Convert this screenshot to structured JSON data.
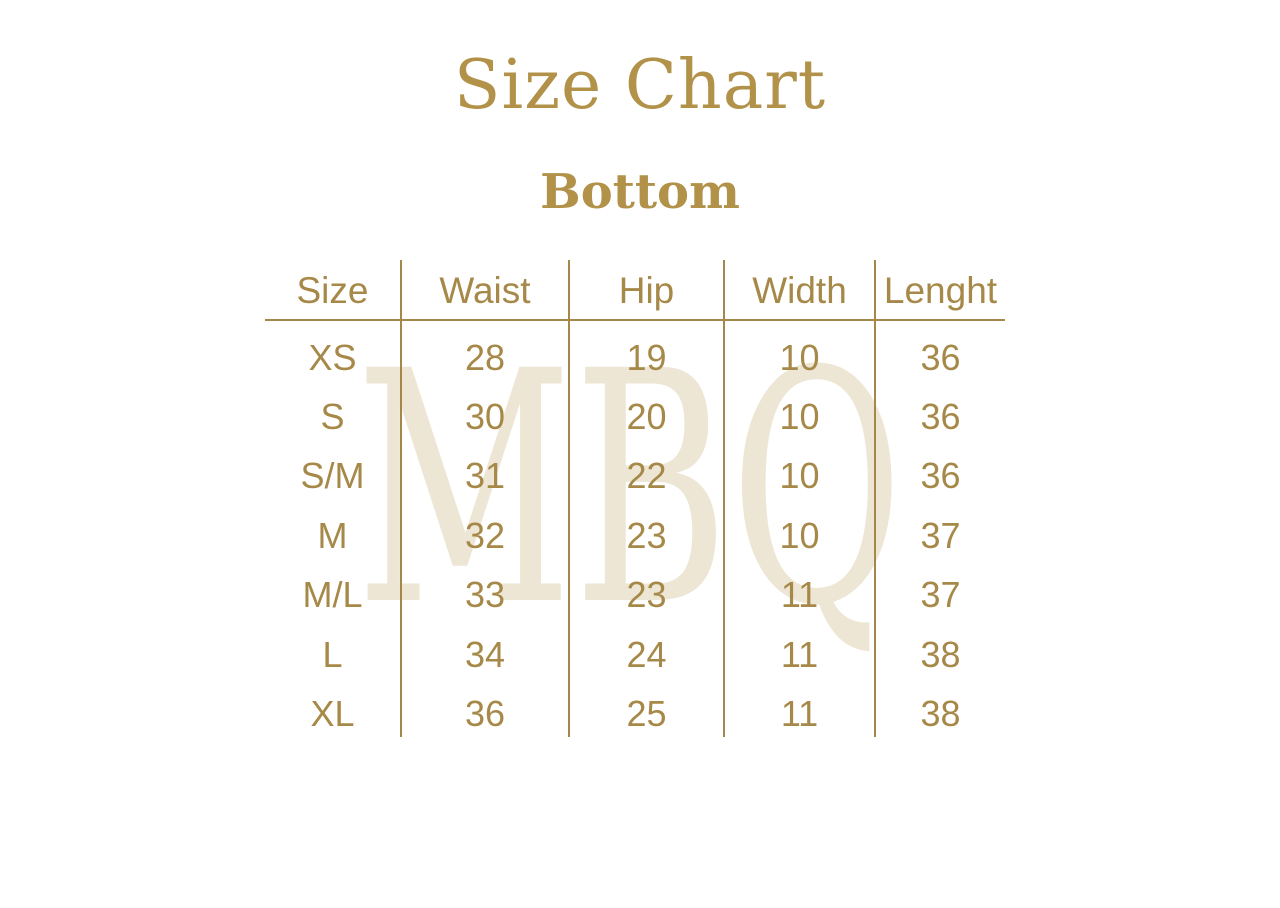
{
  "page": {
    "title": "Size Chart",
    "subtitle": "Bottom",
    "watermark": "MBQ"
  },
  "colors": {
    "title_gold": "#B29149",
    "table_gold": "#A68948",
    "line_gold": "#A5874A",
    "watermark_beige": "#EDE6D4",
    "background": "#FFFFFF"
  },
  "chart_data": {
    "type": "table",
    "title": "Size Chart",
    "subtitle": "Bottom",
    "columns": [
      "Size",
      "Waist",
      "Hip",
      "Width",
      "Lenght"
    ],
    "rows": [
      [
        "XS",
        "28",
        "19",
        "10",
        "36"
      ],
      [
        "S",
        "30",
        "20",
        "10",
        "36"
      ],
      [
        "S/M",
        "31",
        "22",
        "10",
        "36"
      ],
      [
        "M",
        "32",
        "23",
        "10",
        "37"
      ],
      [
        "M/L",
        "33",
        "23",
        "11",
        "37"
      ],
      [
        "L",
        "34",
        "24",
        "11",
        "38"
      ],
      [
        "XL",
        "36",
        "25",
        "11",
        "38"
      ]
    ]
  }
}
